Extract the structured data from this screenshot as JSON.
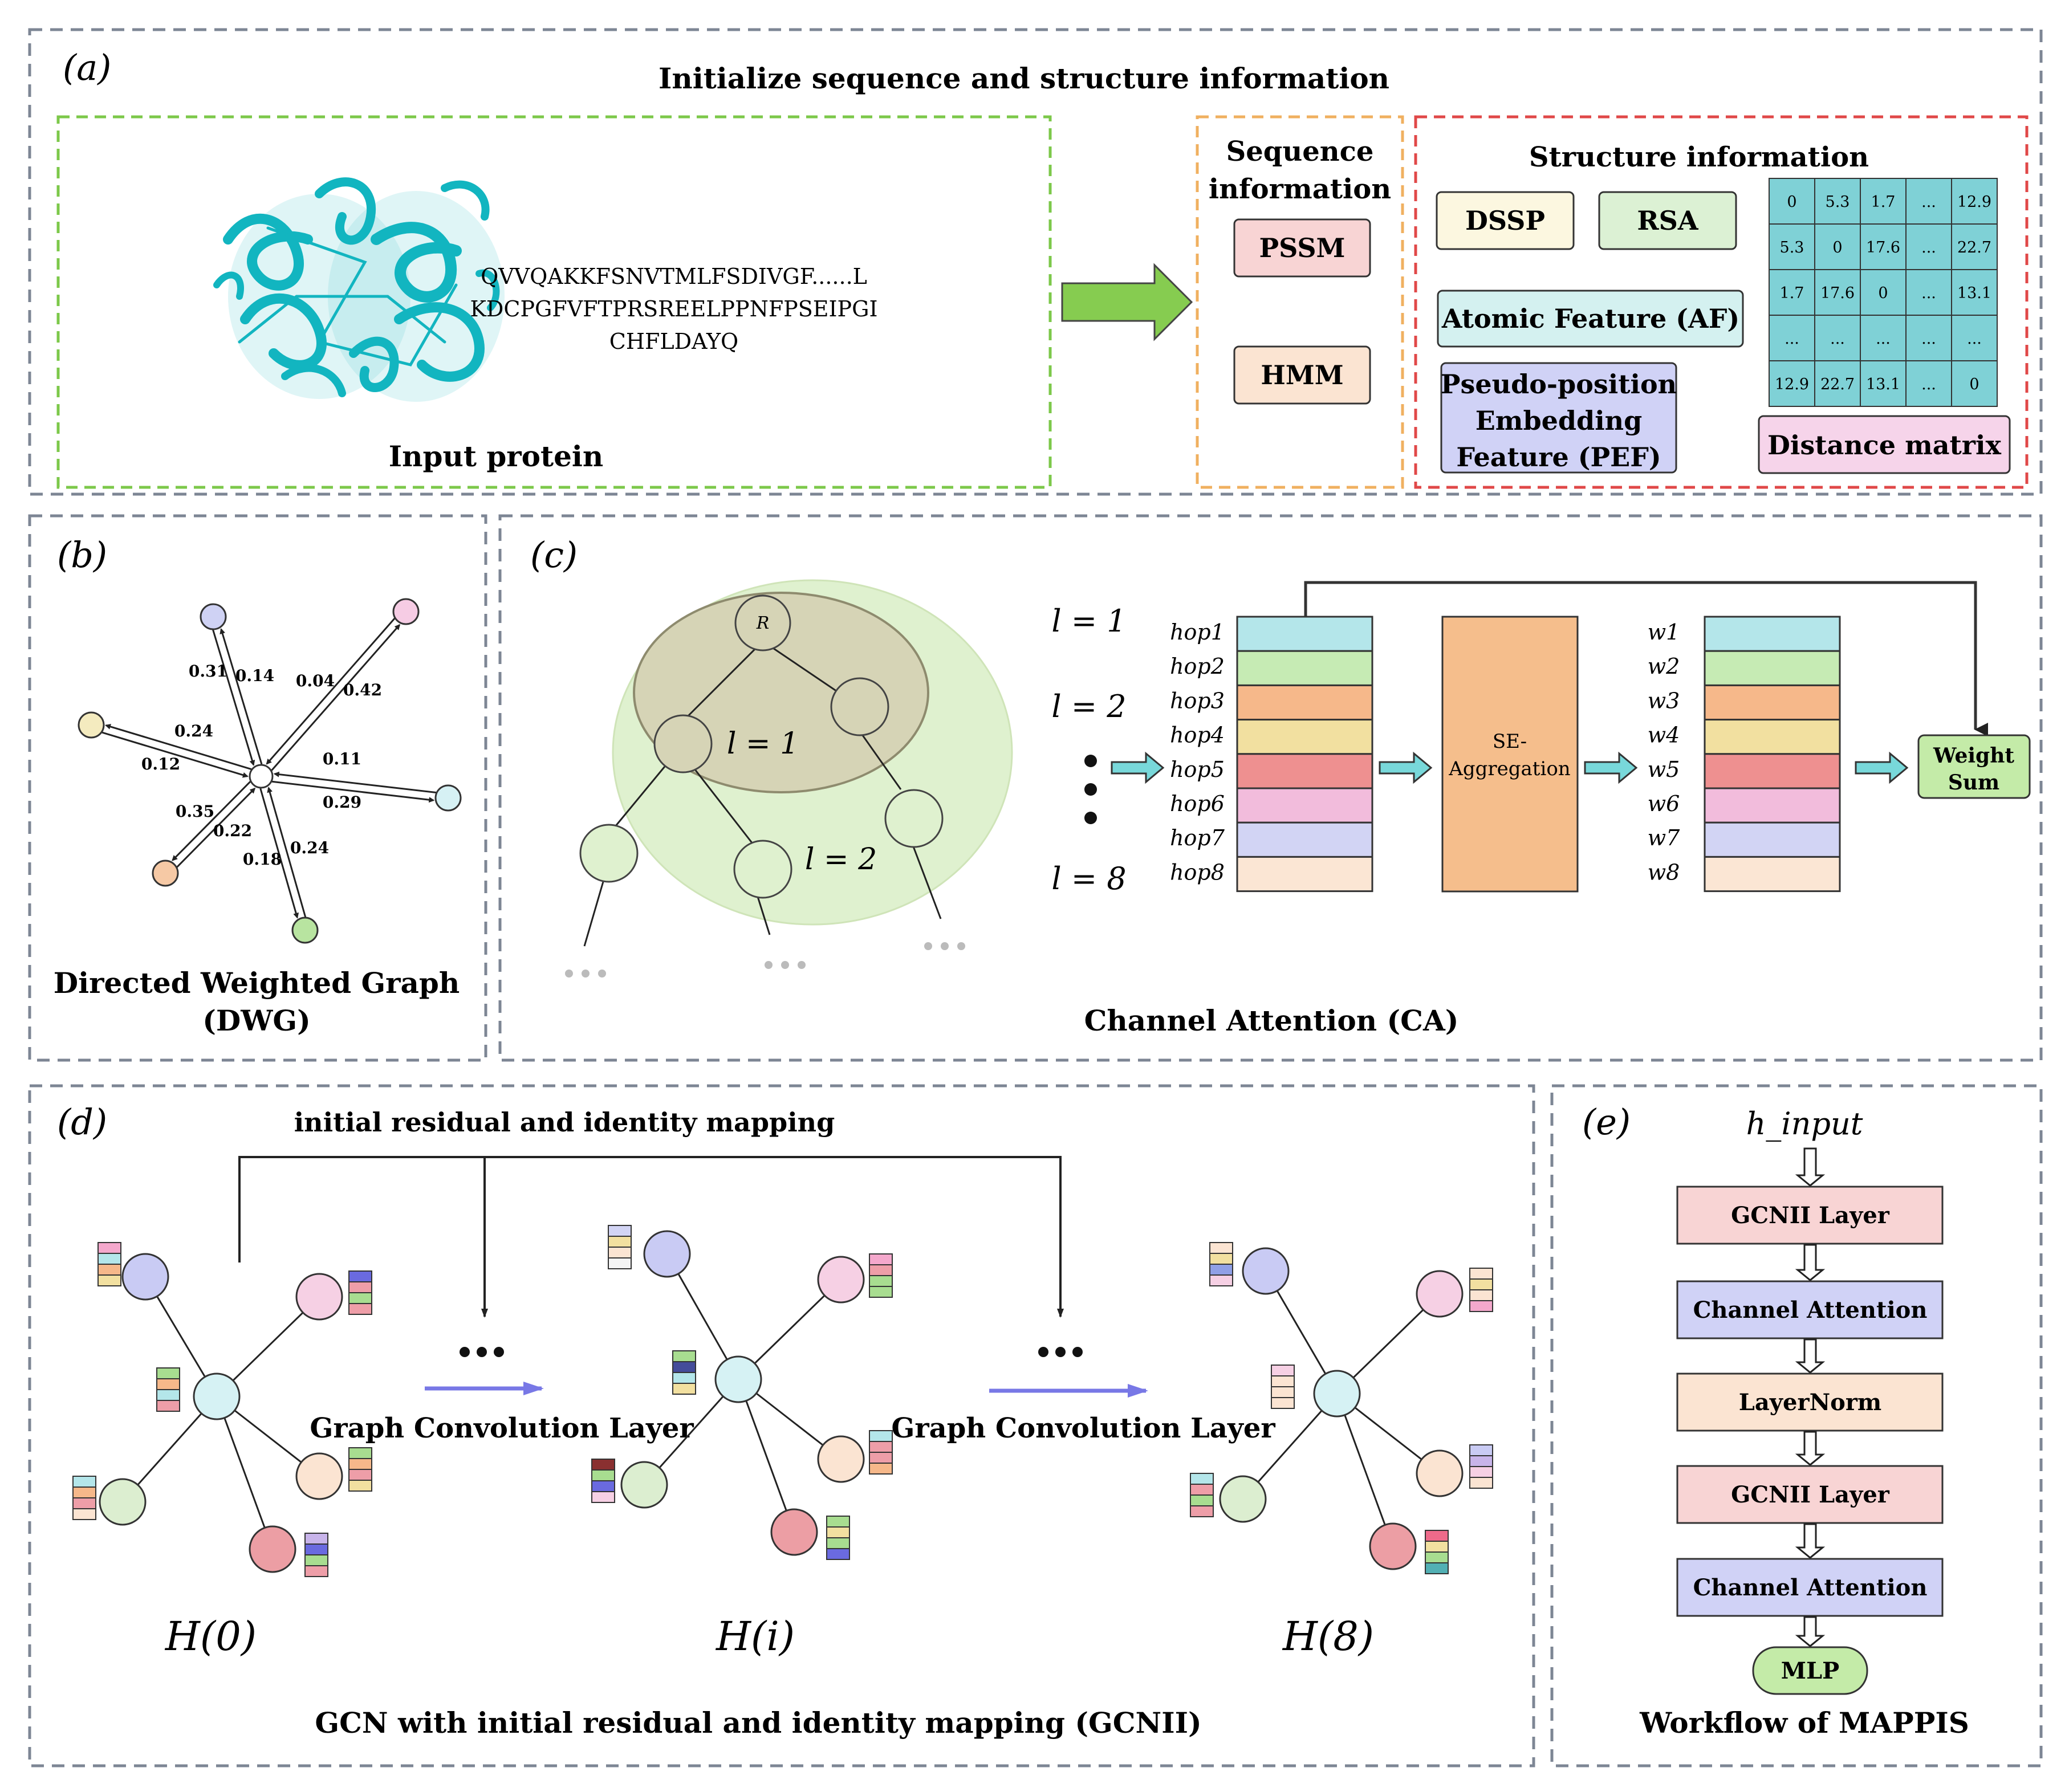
{
  "panel_a": {
    "tag": "(a)",
    "title": "Initialize sequence and structure information",
    "input_label": "Input protein",
    "sequence_lines": [
      "QVVQAKKFSNVTMLFSDIVGF......L",
      "KDCPGFVFTPRSREELPPNFPSEIPGI",
      "CHFLDAYQ"
    ],
    "seq_title_1": "Sequence",
    "seq_title_2": "information",
    "pssm": "PSSM",
    "hmm": "HMM",
    "struct_title": "Structure information",
    "dssp": "DSSP",
    "rsa": "RSA",
    "af": "Atomic Feature (AF)",
    "pef_1": "Pseudo-position",
    "pef_2": "Embedding",
    "pef_3": "Feature (PEF)",
    "dist_label": "Distance matrix",
    "matrix": [
      [
        "0",
        "5.3",
        "1.7",
        "...",
        "12.9"
      ],
      [
        "5.3",
        "0",
        "17.6",
        "...",
        "22.7"
      ],
      [
        "1.7",
        "17.6",
        "0",
        "...",
        "13.1"
      ],
      [
        "...",
        "...",
        "...",
        "...",
        "..."
      ],
      [
        "12.9",
        "22.7",
        "13.1",
        "...",
        "0"
      ]
    ],
    "colors": {
      "green": "#7cc84a",
      "orange": "#f0b060",
      "red": "#e04848",
      "protein": "#12b5c0"
    }
  },
  "panel_b": {
    "tag": "(b)",
    "title_1": "Directed Weighted Graph",
    "title_2": "(DWG)",
    "weights": [
      "0.31",
      "0.14",
      "0.04",
      "0.42",
      "0.24",
      "0.12",
      "0.11",
      "0.29",
      "0.35",
      "0.22",
      "0.18",
      "0.24"
    ]
  },
  "panel_c": {
    "tag": "(c)",
    "root": "R",
    "l1_tree": "l = 1",
    "l2_tree": "l = 2",
    "l1": "l = 1",
    "l2": "l = 2",
    "l8": "l = 8",
    "hops": [
      "hop1",
      "hop2",
      "hop3",
      "hop4",
      "hop5",
      "hop6",
      "hop7",
      "hop8"
    ],
    "ws": [
      "w1",
      "w2",
      "w3",
      "w4",
      "w5",
      "w6",
      "w7",
      "w8"
    ],
    "se_1": "SE-",
    "se_2": "Aggregation",
    "ws_1": "Weight",
    "ws_2": "Sum",
    "title": "Channel Attention (CA)",
    "stack_colors": [
      "#b4e6ea",
      "#c6ebb4",
      "#f6b88a",
      "#f2e0a0",
      "#ee9090",
      "#f2bcdc",
      "#d2d4f4",
      "#fbe6d4"
    ]
  },
  "panel_d": {
    "tag": "(d)",
    "top_label": "initial residual and identity mapping",
    "gcl_1": "Graph Convolution Layer",
    "gcl_2": "Graph Convolution Layer",
    "h0": "H(0)",
    "hi": "H(i)",
    "h8": "H(8)",
    "title": "GCN with initial residual and identity mapping (GCNII)"
  },
  "panel_e": {
    "tag": "(e)",
    "input": "h_input",
    "steps": [
      "GCNII Layer",
      "Channel Attention",
      "LayerNorm",
      "GCNII Layer",
      "Channel Attention"
    ],
    "mlp": "MLP",
    "title": "Workflow of MAPPIS"
  }
}
